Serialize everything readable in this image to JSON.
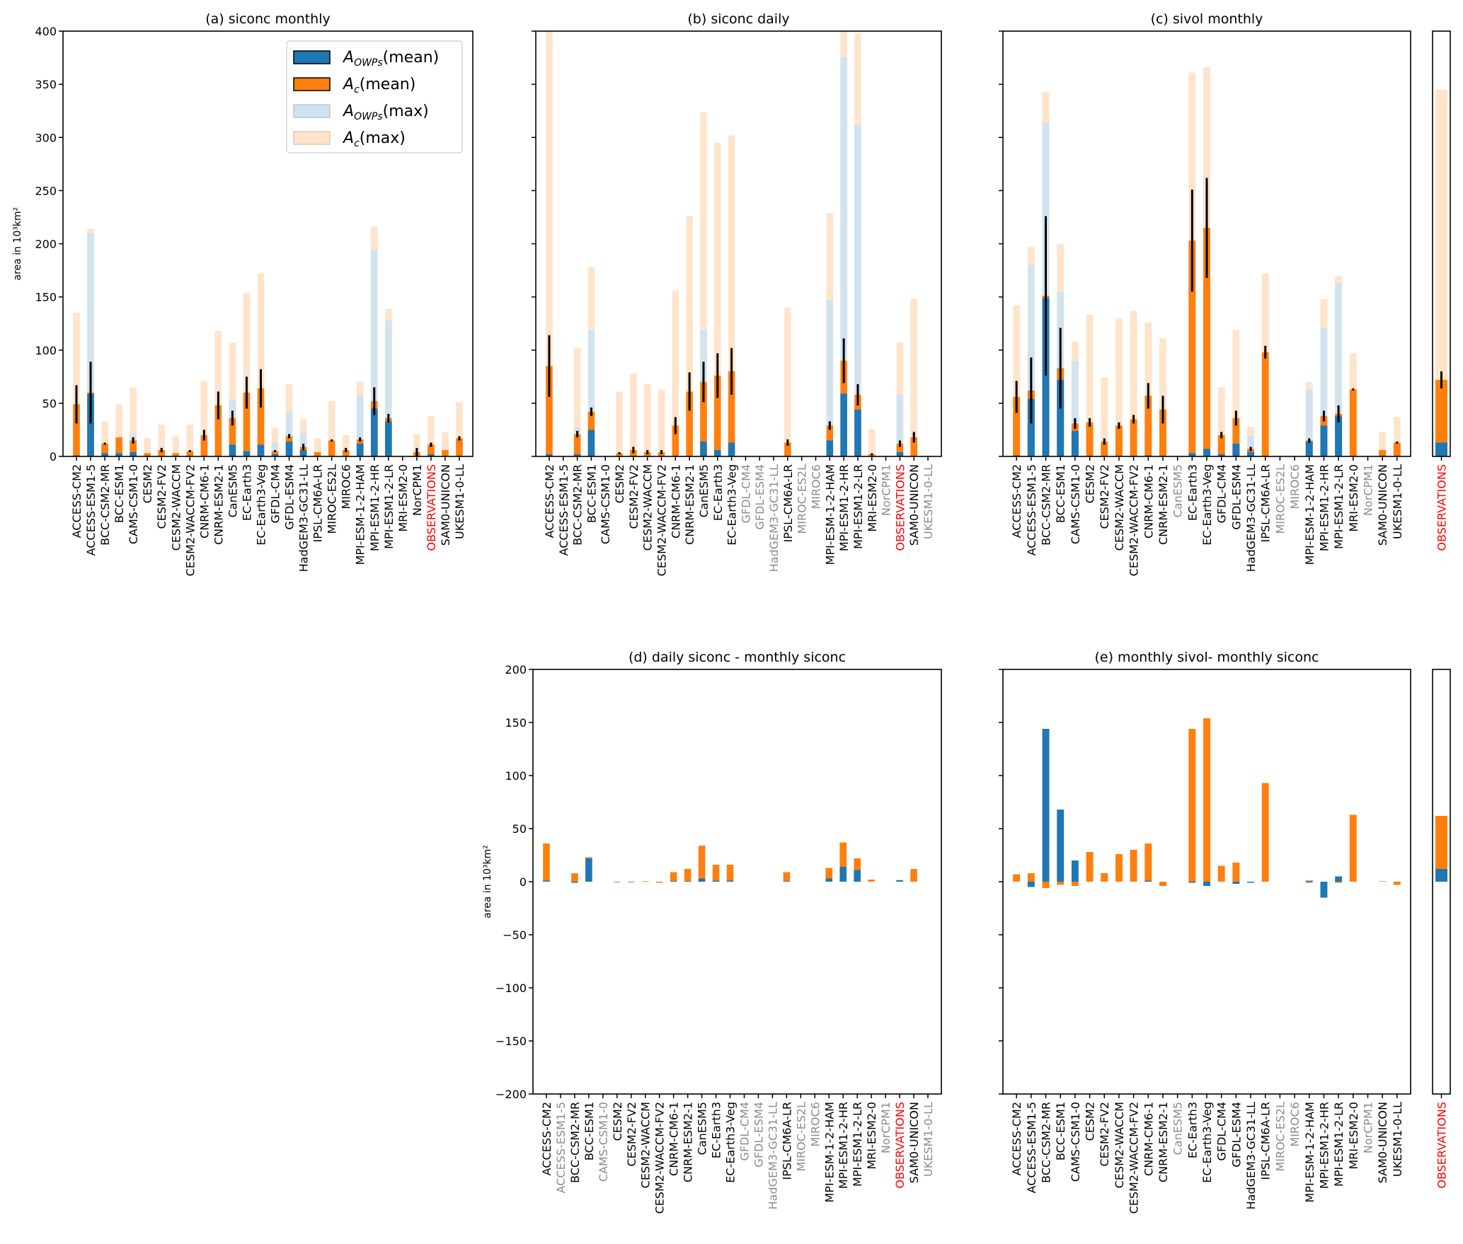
{
  "figure": {
    "ylabel": "area in 10³km²",
    "legend": {
      "placement": "top-right",
      "entries": [
        {
          "key": "owps_mean",
          "label_main": "A",
          "label_sub": "OWPs",
          "label_rest": "(mean)",
          "color": "#1f77b4",
          "edge": "#000000"
        },
        {
          "key": "c_mean",
          "label_main": "A",
          "label_sub": "c",
          "label_rest": "(mean)",
          "color": "#ff7f0e",
          "edge": "#000000"
        },
        {
          "key": "owps_max",
          "label_main": "A",
          "label_sub": "OWPs",
          "label_rest": "(max)",
          "color": "#d2e3f0",
          "edge": "#b8c8d6"
        },
        {
          "key": "c_max",
          "label_main": "A",
          "label_sub": "c",
          "label_rest": "(max)",
          "color": "#ffe4cc",
          "edge": "#e6c8ae"
        }
      ]
    },
    "colors": {
      "owps_mean": "#1f77b4",
      "c_mean": "#ff7f0e",
      "owps_max": "#d2e3f0",
      "c_max": "#ffe4cc",
      "observations_label": "#ff0000",
      "missing_label": "#8c8c8c",
      "errorbar": "#000000"
    }
  },
  "chart_data": [
    {
      "id": "a",
      "type": "bar",
      "title": "(a) siconc monthly",
      "ylabel": "area in 10³km²",
      "ylim": [
        0,
        400
      ],
      "yticks": [
        0,
        50,
        100,
        150,
        200,
        250,
        300,
        350,
        400
      ],
      "show_yticklabels": true,
      "legend": true,
      "categories": [
        "ACCESS-CM2",
        "ACCESS-ESM1-5",
        "BCC-CSM2-MR",
        "BCC-ESM1",
        "CAMS-CSM1-0",
        "CESM2",
        "CESM2-FV2",
        "CESM2-WACCM",
        "CESM2-WACCM-FV2",
        "CNRM-CM6-1",
        "CNRM-ESM2-1",
        "CanESM5",
        "EC-Earth3",
        "EC-Earth3-Veg",
        "GFDL-CM4",
        "GFDL-ESM4",
        "HadGEM3-GC31-LL",
        "IPSL-CM6A-LR",
        "MIROC-ES2L",
        "MIROC6",
        "MPI-ESM-1-2-HAM",
        "MPI-ESM1-2-HR",
        "MPI-ESM1-2-LR",
        "MRI-ESM2-0",
        "NorCPM1",
        "OBSERVATIONS",
        "SAM0-UNICON",
        "UKESM1-0-LL"
      ],
      "label_status": [
        "ok",
        "ok",
        "ok",
        "ok",
        "ok",
        "ok",
        "ok",
        "ok",
        "ok",
        "ok",
        "ok",
        "ok",
        "ok",
        "ok",
        "ok",
        "ok",
        "ok",
        "ok",
        "ok",
        "ok",
        "ok",
        "ok",
        "ok",
        "ok",
        "ok",
        "obs",
        "ok",
        "ok"
      ],
      "series": [
        {
          "name": "A_c(max)",
          "values": [
            135,
            214,
            33,
            49,
            65,
            17,
            30,
            19,
            30,
            71,
            118,
            107,
            154,
            172,
            27,
            68,
            35,
            17,
            52,
            20,
            70,
            216,
            139,
            0,
            21,
            38,
            23,
            51
          ]
        },
        {
          "name": "A_OWPs(max)",
          "values": [
            1,
            210,
            3,
            3,
            21,
            1,
            1,
            1,
            1,
            1,
            1,
            54,
            5,
            12,
            13,
            42,
            22,
            1,
            1,
            1,
            57,
            194,
            128,
            0,
            1,
            13,
            1,
            1
          ]
        },
        {
          "name": "A_c(mean)",
          "values": [
            49,
            60,
            12,
            18,
            15,
            3,
            6,
            3,
            5,
            20,
            48,
            36,
            60,
            64,
            5,
            19,
            9,
            4,
            15,
            6,
            16,
            52,
            36,
            0,
            4,
            11,
            6,
            17
          ]
        },
        {
          "name": "A_OWPs(mean)",
          "values": [
            1,
            59,
            3,
            3,
            4,
            0.5,
            0.5,
            0.5,
            0.5,
            0.5,
            0.5,
            11,
            5,
            11,
            2,
            14,
            6,
            0.5,
            0.5,
            0.5,
            12,
            45,
            33,
            0,
            0.5,
            2,
            0.5,
            0.5
          ]
        },
        {
          "name": "error",
          "values": [
            18,
            29,
            1,
            0,
            3,
            0,
            2,
            0,
            1,
            5,
            13,
            7,
            15,
            18,
            1,
            2,
            3,
            0,
            1,
            2,
            2,
            13,
            4,
            0,
            4,
            2,
            0,
            2
          ]
        }
      ]
    },
    {
      "id": "b",
      "type": "bar",
      "title": "(b) siconc daily",
      "ylim": [
        0,
        400
      ],
      "yticks": [
        0,
        50,
        100,
        150,
        200,
        250,
        300,
        350,
        400
      ],
      "show_yticklabels": false,
      "categories": [
        "ACCESS-CM2",
        "ACCESS-ESM1-5",
        "BCC-CSM2-MR",
        "BCC-ESM1",
        "CAMS-CSM1-0",
        "CESM2",
        "CESM2-FV2",
        "CESM2-WACCM",
        "CESM2-WACCM-FV2",
        "CNRM-CM6-1",
        "CNRM-ESM2-1",
        "CanESM5",
        "EC-Earth3",
        "EC-Earth3-Veg",
        "GFDL-CM4",
        "GFDL-ESM4",
        "HadGEM3-GC31-LL",
        "IPSL-CM6A-LR",
        "MIROC-ES2L",
        "MIROC6",
        "MPI-ESM-1-2-HAM",
        "MPI-ESM1-2-HR",
        "MPI-ESM1-2-LR",
        "MRI-ESM2-0",
        "NorCPM1",
        "OBSERVATIONS",
        "SAM0-UNICON",
        "UKESM1-0-LL"
      ],
      "label_status": [
        "ok",
        "ok",
        "ok",
        "ok",
        "ok",
        "ok",
        "ok",
        "ok",
        "ok",
        "ok",
        "ok",
        "ok",
        "ok",
        "ok",
        "missing",
        "missing",
        "missing",
        "ok",
        "missing",
        "missing",
        "ok",
        "ok",
        "ok",
        "ok",
        "missing",
        "obs",
        "ok",
        "missing"
      ],
      "series": [
        {
          "name": "A_c(max)",
          "values": [
            400,
            0,
            102,
            178,
            0,
            61,
            78,
            68,
            63,
            156,
            226,
            324,
            295,
            302,
            0,
            0,
            0,
            140,
            0,
            0,
            229,
            400,
            398,
            26,
            0,
            107,
            148,
            0
          ]
        },
        {
          "name": "A_OWPs(max)",
          "values": [
            1,
            0,
            27,
            119,
            0,
            1,
            1,
            1,
            1,
            1,
            1,
            119,
            6,
            13,
            0,
            0,
            0,
            1,
            0,
            0,
            147,
            375,
            312,
            1,
            0,
            58,
            1,
            0
          ]
        },
        {
          "name": "A_c(mean)",
          "values": [
            85,
            0,
            21,
            42,
            0,
            3,
            6,
            4,
            4,
            29,
            61,
            70,
            76,
            80,
            0,
            0,
            0,
            13,
            0,
            0,
            29,
            90,
            58,
            2,
            0,
            12,
            18,
            0
          ]
        },
        {
          "name": "A_OWPs(mean)",
          "values": [
            2,
            0,
            2,
            25,
            0,
            0.5,
            0.5,
            0.5,
            0.5,
            0.5,
            0.5,
            14,
            6,
            13,
            0,
            0,
            0,
            0.5,
            0,
            0,
            15,
            59,
            44,
            0.5,
            0,
            4,
            0.5,
            0
          ]
        },
        {
          "name": "error",
          "values": [
            29,
            0,
            3,
            4,
            0,
            1,
            3,
            2,
            2,
            8,
            18,
            19,
            21,
            22,
            0,
            0,
            0,
            3,
            0,
            0,
            4,
            21,
            10,
            1,
            0,
            3,
            5,
            0
          ]
        }
      ]
    },
    {
      "id": "c",
      "type": "bar",
      "title": "(c) sivol monthly",
      "ylim": [
        0,
        400
      ],
      "yticks": [
        0,
        50,
        100,
        150,
        200,
        250,
        300,
        350,
        400
      ],
      "show_yticklabels": false,
      "categories": [
        "ACCESS-CM2",
        "ACCESS-ESM1-5",
        "BCC-CSM2-MR",
        "BCC-ESM1",
        "CAMS-CSM1-0",
        "CESM2",
        "CESM2-FV2",
        "CESM2-WACCM",
        "CESM2-WACCM-FV2",
        "CNRM-CM6-1",
        "CNRM-ESM2-1",
        "CanESM5",
        "EC-Earth3",
        "EC-Earth3-Veg",
        "GFDL-CM4",
        "GFDL-ESM4",
        "HadGEM3-GC31-LL",
        "IPSL-CM6A-LR",
        "MIROC-ES2L",
        "MIROC6",
        "MPI-ESM-1-2-HAM",
        "MPI-ESM1-2-HR",
        "MPI-ESM1-2-LR",
        "MRI-ESM2-0",
        "NorCPM1",
        "SAM0-UNICON",
        "UKESM1-0-LL"
      ],
      "label_status": [
        "ok",
        "ok",
        "ok",
        "ok",
        "ok",
        "ok",
        "ok",
        "ok",
        "ok",
        "ok",
        "ok",
        "missing",
        "ok",
        "ok",
        "ok",
        "ok",
        "ok",
        "ok",
        "missing",
        "missing",
        "ok",
        "ok",
        "ok",
        "ok",
        "missing",
        "ok",
        "ok"
      ],
      "series": [
        {
          "name": "A_c(max)",
          "values": [
            142,
            197,
            343,
            200,
            108,
            133,
            74,
            130,
            137,
            126,
            111,
            0,
            361,
            366,
            65,
            119,
            28,
            172,
            0,
            0,
            70,
            148,
            170,
            97,
            0,
            23,
            37
          ]
        },
        {
          "name": "A_OWPs(max)",
          "values": [
            1,
            180,
            314,
            155,
            90,
            1,
            1,
            1,
            1,
            1,
            1,
            0,
            3,
            7,
            1,
            34,
            19,
            1,
            0,
            0,
            63,
            121,
            163,
            1,
            0,
            1,
            1
          ]
        },
        {
          "name": "A_c(mean)",
          "values": [
            56,
            62,
            151,
            83,
            31,
            32,
            14,
            29,
            35,
            57,
            44,
            0,
            203,
            215,
            20,
            36,
            7,
            98,
            0,
            0,
            15,
            38,
            40,
            63,
            0,
            6,
            13
          ]
        },
        {
          "name": "A_OWPs(mean)",
          "values": [
            1,
            54,
            149,
            72,
            24,
            0.5,
            0.5,
            0.5,
            0.5,
            1,
            0.5,
            0,
            3,
            7,
            2,
            12,
            4,
            0.5,
            0,
            0,
            14,
            29,
            38,
            0.5,
            0,
            0.5,
            0.5
          ]
        },
        {
          "name": "error",
          "values": [
            15,
            31,
            75,
            38,
            5,
            4,
            3,
            3,
            4,
            12,
            13,
            0,
            48,
            47,
            3,
            7,
            2,
            6,
            0,
            0,
            2,
            5,
            8,
            1,
            0,
            0,
            1
          ]
        }
      ]
    },
    {
      "id": "c-obs",
      "type": "bar",
      "title": "",
      "ylim": [
        0,
        400
      ],
      "show_yticklabels": false,
      "categories": [
        "OBSERVATIONS"
      ],
      "label_status": [
        "obs"
      ],
      "series": [
        {
          "name": "A_c(max)",
          "values": [
            345
          ]
        },
        {
          "name": "A_OWPs(max)",
          "values": [
            1
          ]
        },
        {
          "name": "A_c(mean)",
          "values": [
            72
          ]
        },
        {
          "name": "A_OWPs(mean)",
          "values": [
            13
          ]
        },
        {
          "name": "error",
          "values": [
            8
          ]
        }
      ]
    },
    {
      "id": "d",
      "type": "bar",
      "title": "(d) daily siconc - monthly siconc",
      "ylabel": "area in 10³km²",
      "ylim": [
        -200,
        200
      ],
      "yticks": [
        -200,
        -150,
        -100,
        -50,
        0,
        50,
        100,
        150,
        200
      ],
      "show_yticklabels": true,
      "categories": [
        "ACCESS-CM2",
        "ACCESS-ESM1-5",
        "BCC-CSM2-MR",
        "BCC-ESM1",
        "CAMS-CSM1-0",
        "CESM2",
        "CESM2-FV2",
        "CESM2-WACCM",
        "CESM2-WACCM-FV2",
        "CNRM-CM6-1",
        "CNRM-ESM2-1",
        "CanESM5",
        "EC-Earth3",
        "EC-Earth3-Veg",
        "GFDL-CM4",
        "GFDL-ESM4",
        "HadGEM3-GC31-LL",
        "IPSL-CM6A-LR",
        "MIROC-ES2L",
        "MIROC6",
        "MPI-ESM-1-2-HAM",
        "MPI-ESM1-2-HR",
        "MPI-ESM1-2-LR",
        "MRI-ESM2-0",
        "NorCPM1",
        "OBSERVATIONS",
        "SAM0-UNICON",
        "UKESM1-0-LL"
      ],
      "label_status": [
        "ok",
        "missing",
        "ok",
        "ok",
        "missing",
        "ok",
        "ok",
        "ok",
        "ok",
        "ok",
        "ok",
        "ok",
        "ok",
        "ok",
        "missing",
        "missing",
        "missing",
        "ok",
        "missing",
        "missing",
        "ok",
        "ok",
        "ok",
        "ok",
        "missing",
        "obs",
        "ok",
        "missing"
      ],
      "series": [
        {
          "name": "A_c(mean) diff",
          "values": [
            36,
            0,
            8,
            23,
            0,
            0,
            0,
            0.5,
            -1,
            9,
            12,
            34,
            16,
            16,
            0,
            0,
            0,
            9,
            0,
            0,
            13,
            37,
            22,
            2,
            0,
            1,
            12,
            0
          ]
        },
        {
          "name": "A_OWPs(mean) diff",
          "values": [
            1,
            0,
            -1,
            22,
            0,
            -0.5,
            -0.5,
            0,
            0,
            0.5,
            0.5,
            3,
            1,
            1,
            0,
            0,
            0,
            0.5,
            0,
            0,
            3,
            14,
            11,
            0,
            0,
            1.5,
            0,
            0
          ]
        }
      ]
    },
    {
      "id": "e",
      "type": "bar",
      "title": "(e) monthly sivol- monthly siconc",
      "ylim": [
        -200,
        200
      ],
      "yticks": [
        -200,
        -150,
        -100,
        -50,
        0,
        50,
        100,
        150,
        200
      ],
      "show_yticklabels": false,
      "categories": [
        "ACCESS-CM2",
        "ACCESS-ESM1-5",
        "BCC-CSM2-MR",
        "BCC-ESM1",
        "CAMS-CSM1-0",
        "CESM2",
        "CESM2-FV2",
        "CESM2-WACCM",
        "CESM2-WACCM-FV2",
        "CNRM-CM6-1",
        "CNRM-ESM2-1",
        "CanESM5",
        "EC-Earth3",
        "EC-Earth3-Veg",
        "GFDL-CM4",
        "GFDL-ESM4",
        "HadGEM3-GC31-LL",
        "IPSL-CM6A-LR",
        "MIROC-ES2L",
        "MIROC6",
        "MPI-ESM-1-2-HAM",
        "MPI-ESM1-2-HR",
        "MPI-ESM1-2-LR",
        "MRI-ESM2-0",
        "NorCPM1",
        "SAM0-UNICON",
        "UKESM1-0-LL"
      ],
      "label_status": [
        "ok",
        "ok",
        "ok",
        "ok",
        "ok",
        "ok",
        "ok",
        "ok",
        "ok",
        "ok",
        "ok",
        "missing",
        "ok",
        "ok",
        "ok",
        "ok",
        "ok",
        "ok",
        "missing",
        "missing",
        "ok",
        "ok",
        "ok",
        "ok",
        "missing",
        "ok",
        "ok"
      ],
      "series": [
        {
          "name": "A_c(mean) diff",
          "values": [
            7,
            8,
            -6,
            -3,
            -4,
            28,
            8,
            26,
            30,
            36,
            -4,
            0,
            144,
            154,
            15,
            18,
            -1,
            93,
            0,
            0,
            -1,
            -1,
            -1,
            63,
            0,
            0.5,
            -3
          ]
        },
        {
          "name": "A_OWPs(mean) diff",
          "values": [
            0,
            -5,
            144,
            68,
            20,
            0,
            0,
            0,
            0,
            1,
            0,
            0,
            -1,
            -4,
            0,
            -2,
            -1,
            0,
            0,
            0,
            1,
            -15,
            5,
            0,
            0,
            0,
            0
          ]
        }
      ]
    },
    {
      "id": "e-obs",
      "type": "bar",
      "title": "",
      "ylim": [
        -200,
        200
      ],
      "show_yticklabels": false,
      "categories": [
        "OBSERVATIONS"
      ],
      "label_status": [
        "obs"
      ],
      "series": [
        {
          "name": "A_c(mean) diff",
          "values": [
            62
          ]
        },
        {
          "name": "A_OWPs(mean) diff",
          "values": [
            12
          ]
        }
      ]
    }
  ]
}
